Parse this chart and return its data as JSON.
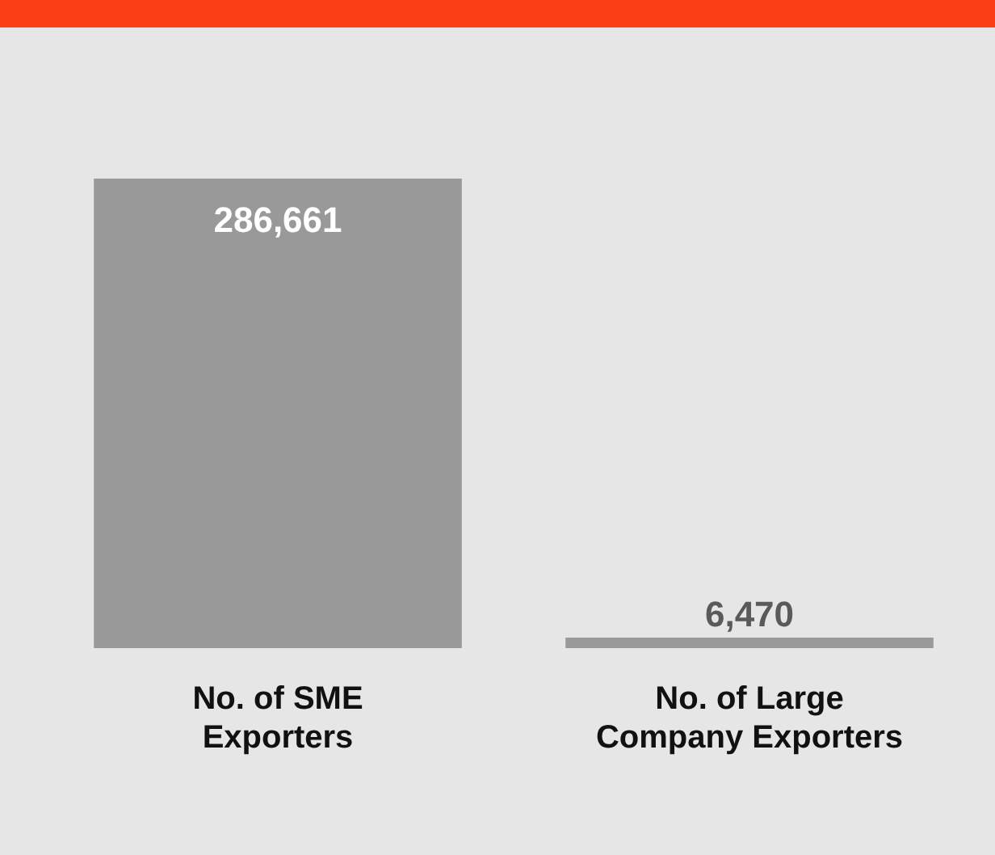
{
  "chart_data": {
    "type": "bar",
    "categories": [
      "No. of SME Exporters",
      "No. of Large Company Exporters"
    ],
    "values": [
      286661,
      6470
    ],
    "color": "#999999",
    "value_labels": [
      "286,661",
      "6,470"
    ],
    "grid": false,
    "legend": false
  }
}
